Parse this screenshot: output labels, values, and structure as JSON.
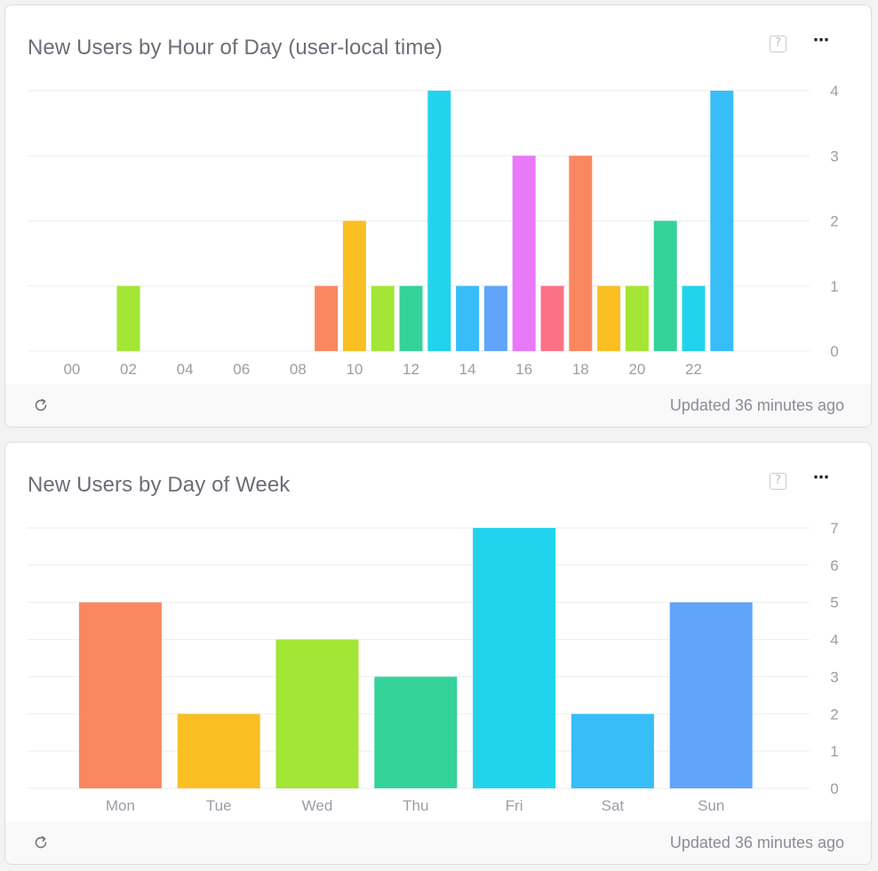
{
  "cards": [
    {
      "title": "New Users by Hour of Day (user-local time)",
      "help_icon": "help-icon",
      "more_icon": "more-icon",
      "more_glyph": "⋯",
      "help_glyph": "?",
      "updated": "Updated 36 minutes ago"
    },
    {
      "title": "New Users by Day of Week",
      "help_icon": "help-icon",
      "more_icon": "more-icon",
      "more_glyph": "⋯",
      "help_glyph": "?",
      "updated": "Updated 36 minutes ago"
    }
  ],
  "colors": {
    "palette": [
      "#f98861",
      "#fbbf24",
      "#a3e635",
      "#34d399",
      "#22d3ee",
      "#38bdf8",
      "#60a5fa",
      "#e879f9",
      "#fb7185"
    ],
    "grid": "#eeeef0"
  },
  "chart_data": [
    {
      "type": "bar",
      "title": "New Users by Hour of Day (user-local time)",
      "x": [
        0,
        1,
        2,
        3,
        4,
        5,
        6,
        7,
        8,
        9,
        10,
        11,
        12,
        13,
        14,
        15,
        16,
        17,
        18,
        19,
        20,
        21,
        22,
        23
      ],
      "x_tick_labels": [
        "00",
        "02",
        "04",
        "06",
        "08",
        "10",
        "12",
        "14",
        "16",
        "18",
        "20",
        "22"
      ],
      "x_tick_values": [
        0,
        2,
        4,
        6,
        8,
        10,
        12,
        14,
        16,
        18,
        20,
        22
      ],
      "values": [
        0,
        0,
        1,
        0,
        0,
        0,
        0,
        0,
        0,
        1,
        2,
        1,
        1,
        4,
        1,
        1,
        3,
        1,
        3,
        1,
        1,
        2,
        1,
        4
      ],
      "bar_colors": [
        "#f98861",
        "#fbbf24",
        "#a3e635",
        "#34d399",
        "#22d3ee",
        "#38bdf8",
        "#60a5fa",
        "#e879f9",
        "#fb7185",
        "#f98861",
        "#fbbf24",
        "#a3e635",
        "#34d399",
        "#22d3ee",
        "#38bdf8",
        "#60a5fa",
        "#e879f9",
        "#fb7185",
        "#f98861",
        "#fbbf24",
        "#a3e635",
        "#34d399",
        "#22d3ee",
        "#38bdf8"
      ],
      "ylim": [
        0,
        4
      ],
      "y_ticks": [
        0,
        1,
        2,
        3,
        4
      ],
      "y_axis_side": "right",
      "grid": true
    },
    {
      "type": "bar",
      "title": "New Users by Day of Week",
      "categories": [
        "Mon",
        "Tue",
        "Wed",
        "Thu",
        "Fri",
        "Sat",
        "Sun"
      ],
      "values": [
        5,
        2,
        4,
        3,
        7,
        2,
        5
      ],
      "bar_colors": [
        "#f98861",
        "#fbbf24",
        "#a3e635",
        "#34d399",
        "#22d3ee",
        "#38bdf8",
        "#60a5fa"
      ],
      "ylim": [
        0,
        7
      ],
      "y_ticks": [
        0,
        1,
        2,
        3,
        4,
        5,
        6,
        7
      ],
      "y_axis_side": "right",
      "grid": true
    }
  ]
}
